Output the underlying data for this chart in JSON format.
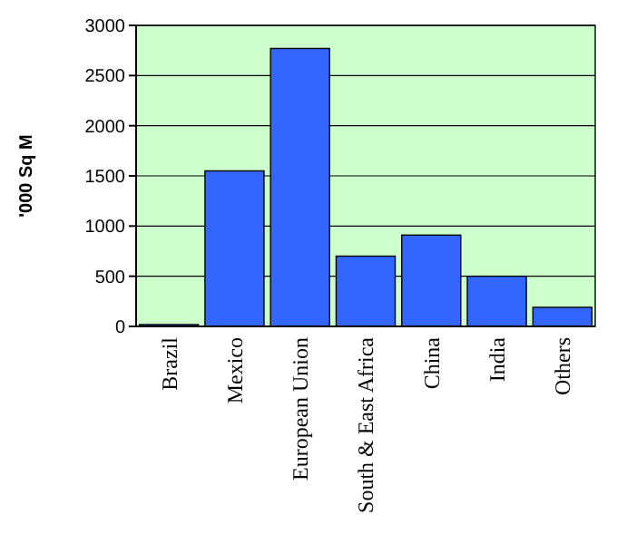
{
  "chart_data": {
    "type": "bar",
    "ylabel": "'000 Sq M",
    "categories": [
      "Brazil",
      "Mexico",
      "European Union",
      "South & East Africa",
      "China",
      "India",
      "Others"
    ],
    "values": [
      0,
      1550,
      2770,
      700,
      910,
      500,
      190
    ],
    "color": "#3366ff",
    "ylim": [
      0,
      3000
    ],
    "yticks": [
      0,
      500,
      1000,
      1500,
      2000,
      2500,
      3000
    ],
    "grid": "y"
  }
}
